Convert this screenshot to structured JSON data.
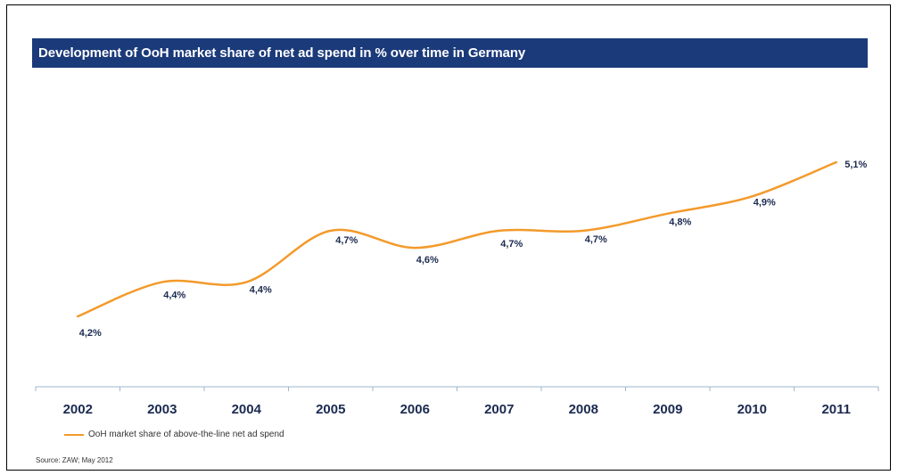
{
  "title": "Development of OoH market share of net ad spend in % over time in Germany",
  "source": "Source: ZAW; May 2012",
  "colors": {
    "title_bar": "#1b3a7a",
    "series_line": "#f39a2b",
    "axis": "#9fb4cc",
    "label_text": "#1b2a50"
  },
  "chart_data": {
    "type": "line",
    "title": "Development of OoH market share of net ad spend in % over time in Germany",
    "xlabel": "",
    "ylabel": "",
    "x": [
      "2002",
      "2003",
      "2004",
      "2005",
      "2006",
      "2007",
      "2008",
      "2009",
      "2010",
      "2011"
    ],
    "series": [
      {
        "name": "OoH market share of above-the-line net ad spend",
        "values": [
          4.2,
          4.4,
          4.4,
          4.7,
          4.6,
          4.7,
          4.7,
          4.8,
          4.9,
          5.1
        ],
        "labels": [
          "4,2%",
          "4,4%",
          "4,4%",
          "4,7%",
          "4,6%",
          "4,7%",
          "4,7%",
          "4,8%",
          "4,9%",
          "5,1%"
        ]
      }
    ],
    "grid": false,
    "legend": "bottom-left"
  }
}
